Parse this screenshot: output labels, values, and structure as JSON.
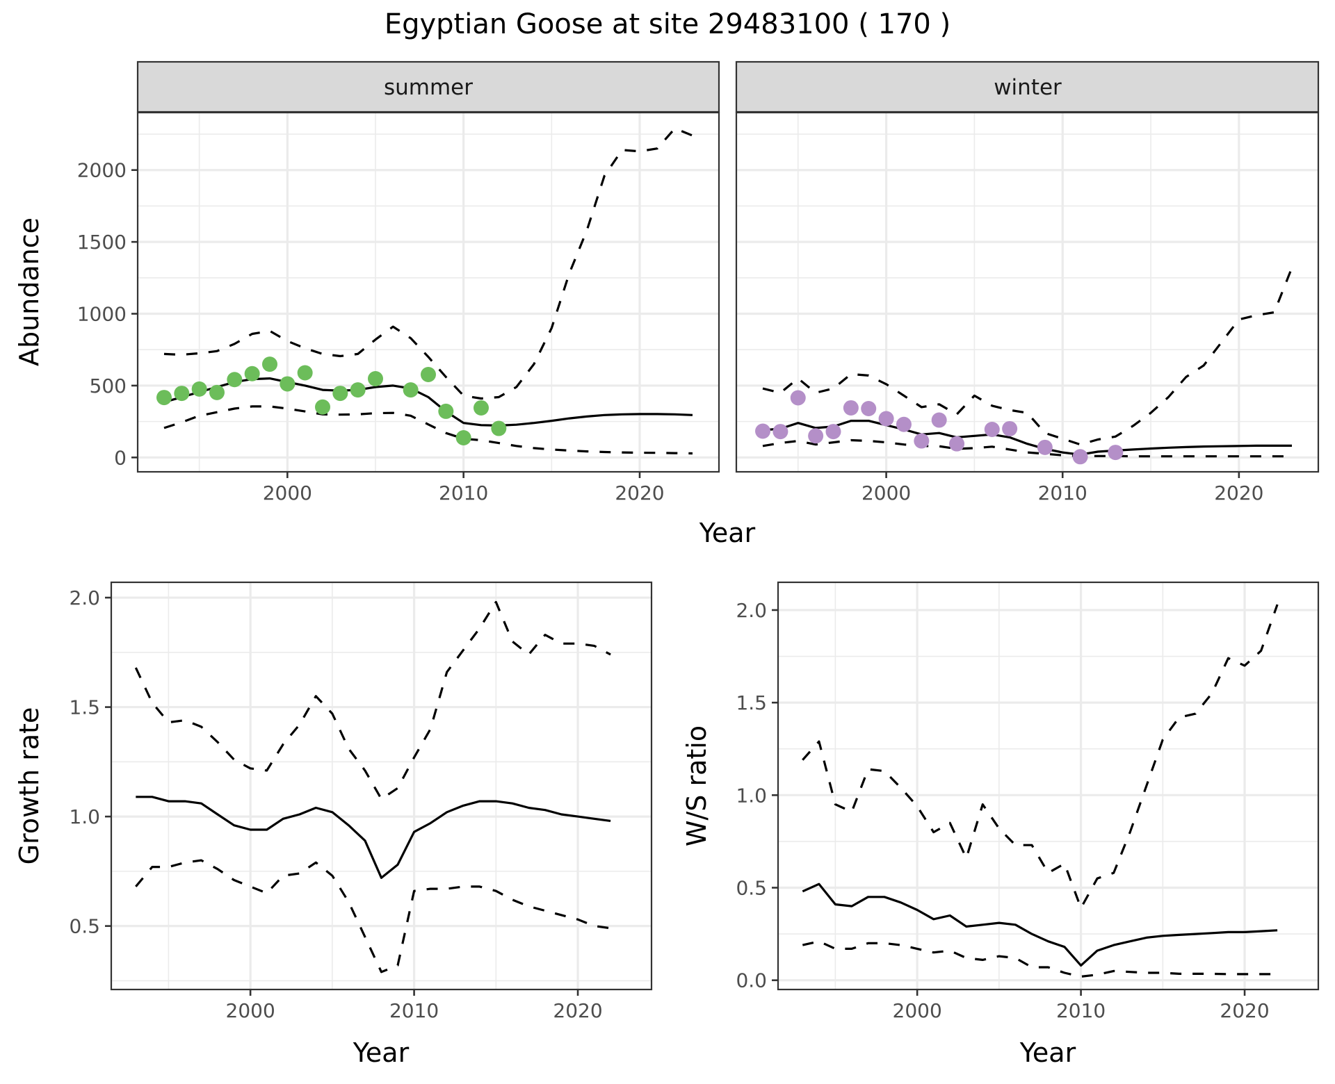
{
  "title": "Egyptian Goose at site 29483100 ( 170 )",
  "colors": {
    "summer_points": "#6cbd5a",
    "winter_points": "#b48fc8",
    "line": "#000000",
    "strip_fill": "#d9d9d9"
  },
  "chart_data": [
    {
      "id": "summer",
      "type": "line",
      "strip": "summer",
      "xlabel": "Year",
      "ylabel": "Abundance",
      "xlim": [
        1991.5,
        2024.5
      ],
      "ylim": [
        -100,
        2400
      ],
      "xticks": [
        2000,
        2010,
        2020
      ],
      "xtick_labels": [
        "2000",
        "2010",
        "2020"
      ],
      "yticks": [
        0,
        500,
        1000,
        1500,
        2000
      ],
      "ytick_labels": [
        "0",
        "500",
        "1000",
        "1500",
        "2000"
      ],
      "x": [
        1993,
        1994,
        1995,
        1996,
        1997,
        1998,
        1999,
        2000,
        2001,
        2002,
        2003,
        2004,
        2005,
        2006,
        2007,
        2008,
        2009,
        2010,
        2011,
        2012,
        2013,
        2014,
        2015,
        2016,
        2017,
        2018,
        2019,
        2020,
        2021,
        2022,
        2023
      ],
      "series": [
        {
          "name": "mean",
          "style": "solid",
          "values": [
            385,
            420,
            455,
            490,
            525,
            545,
            550,
            525,
            500,
            470,
            465,
            470,
            490,
            500,
            480,
            420,
            320,
            240,
            225,
            222,
            228,
            240,
            255,
            272,
            285,
            295,
            300,
            302,
            302,
            300,
            295
          ]
        },
        {
          "name": "upper",
          "style": "dashed",
          "values": [
            720,
            715,
            725,
            740,
            790,
            860,
            880,
            810,
            760,
            720,
            705,
            720,
            820,
            910,
            830,
            700,
            560,
            430,
            410,
            420,
            490,
            650,
            900,
            1280,
            1580,
            1960,
            2140,
            2130,
            2150,
            2290,
            2240
          ]
        },
        {
          "name": "lower",
          "style": "dashed",
          "values": [
            205,
            245,
            290,
            315,
            340,
            355,
            355,
            340,
            320,
            300,
            298,
            300,
            308,
            310,
            290,
            230,
            170,
            130,
            120,
            100,
            80,
            65,
            55,
            48,
            42,
            38,
            35,
            33,
            32,
            30,
            28
          ]
        }
      ],
      "points": {
        "x": [
          1993,
          1994,
          1995,
          1996,
          1997,
          1998,
          1999,
          2000,
          2001,
          2002,
          2003,
          2004,
          2005,
          2007,
          2008,
          2009,
          2010,
          2011,
          2012
        ],
        "y": [
          417,
          446,
          476,
          452,
          542,
          583,
          649,
          512,
          589,
          351,
          446,
          470,
          548,
          470,
          577,
          321,
          137,
          345,
          202
        ]
      }
    },
    {
      "id": "winter",
      "type": "line",
      "strip": "winter",
      "xlabel": "Year",
      "ylabel": "Abundance",
      "xlim": [
        1991.5,
        2024.5
      ],
      "ylim": [
        -100,
        2400
      ],
      "xticks": [
        2000,
        2010,
        2020
      ],
      "xtick_labels": [
        "2000",
        "2010",
        "2020"
      ],
      "yticks": [
        0,
        500,
        1000,
        1500,
        2000
      ],
      "x": [
        1993,
        1994,
        1995,
        1996,
        1997,
        1998,
        1999,
        2000,
        2001,
        2002,
        2003,
        2004,
        2005,
        2006,
        2007,
        2008,
        2009,
        2010,
        2011,
        2012,
        2013,
        2014,
        2015,
        2016,
        2017,
        2018,
        2019,
        2020,
        2021,
        2022,
        2023
      ],
      "series": [
        {
          "name": "mean",
          "style": "solid",
          "values": [
            190,
            200,
            240,
            205,
            215,
            255,
            255,
            225,
            195,
            160,
            170,
            140,
            150,
            160,
            140,
            95,
            60,
            35,
            20,
            40,
            48,
            55,
            62,
            68,
            72,
            76,
            78,
            80,
            82,
            82,
            82
          ]
        },
        {
          "name": "upper",
          "style": "dashed",
          "values": [
            480,
            450,
            550,
            450,
            480,
            580,
            570,
            510,
            430,
            350,
            370,
            300,
            430,
            360,
            330,
            310,
            170,
            130,
            90,
            125,
            145,
            220,
            310,
            420,
            560,
            640,
            800,
            960,
            990,
            1010,
            1320
          ]
        },
        {
          "name": "lower",
          "style": "dashed",
          "values": [
            80,
            100,
            115,
            90,
            105,
            120,
            115,
            105,
            90,
            80,
            78,
            60,
            65,
            75,
            55,
            35,
            25,
            15,
            8,
            10,
            10,
            8,
            8,
            8,
            8,
            8,
            8,
            8,
            8,
            8,
            8
          ]
        }
      ],
      "points": {
        "x": [
          1993,
          1994,
          1995,
          1996,
          1997,
          1998,
          1999,
          2000,
          2001,
          2002,
          2003,
          2004,
          2006,
          2007,
          2009,
          2011,
          2013
        ],
        "y": [
          183,
          180,
          415,
          150,
          180,
          345,
          340,
          270,
          230,
          115,
          260,
          95,
          195,
          200,
          70,
          5,
          35
        ]
      }
    },
    {
      "id": "growth",
      "type": "line",
      "xlabel": "Year",
      "ylabel": "Growth rate",
      "xlim": [
        1991.5,
        2024.5
      ],
      "ylim": [
        0.21,
        2.07
      ],
      "xticks": [
        2000,
        2010,
        2020
      ],
      "xtick_labels": [
        "2000",
        "2010",
        "2020"
      ],
      "yticks": [
        0.5,
        1.0,
        1.5,
        2.0
      ],
      "ytick_labels": [
        "0.5",
        "1.0",
        "1.5",
        "2.0"
      ],
      "x": [
        1993,
        1994,
        1995,
        1996,
        1997,
        1998,
        1999,
        2000,
        2001,
        2002,
        2003,
        2004,
        2005,
        2006,
        2007,
        2008,
        2009,
        2010,
        2011,
        2012,
        2013,
        2014,
        2015,
        2016,
        2017,
        2018,
        2019,
        2020,
        2021,
        2022
      ],
      "series": [
        {
          "name": "mean",
          "style": "solid",
          "values": [
            1.09,
            1.09,
            1.07,
            1.07,
            1.06,
            1.01,
            0.96,
            0.94,
            0.94,
            0.99,
            1.01,
            1.04,
            1.02,
            0.96,
            0.89,
            0.72,
            0.78,
            0.93,
            0.97,
            1.02,
            1.05,
            1.07,
            1.07,
            1.06,
            1.04,
            1.03,
            1.01,
            1.0,
            0.99,
            0.98
          ]
        },
        {
          "name": "upper",
          "style": "dashed",
          "values": [
            1.68,
            1.52,
            1.43,
            1.44,
            1.41,
            1.34,
            1.26,
            1.22,
            1.21,
            1.33,
            1.42,
            1.55,
            1.47,
            1.31,
            1.21,
            1.08,
            1.13,
            1.27,
            1.4,
            1.66,
            1.76,
            1.86,
            1.98,
            1.8,
            1.74,
            1.83,
            1.79,
            1.79,
            1.78,
            1.74
          ]
        },
        {
          "name": "lower",
          "style": "dashed",
          "values": [
            0.68,
            0.77,
            0.77,
            0.79,
            0.8,
            0.76,
            0.71,
            0.68,
            0.65,
            0.73,
            0.74,
            0.79,
            0.73,
            0.61,
            0.45,
            0.29,
            0.32,
            0.66,
            0.67,
            0.67,
            0.68,
            0.68,
            0.66,
            0.62,
            0.59,
            0.57,
            0.55,
            0.53,
            0.5,
            0.49
          ]
        }
      ]
    },
    {
      "id": "ws_ratio",
      "type": "line",
      "xlabel": "Year",
      "ylabel": "W/S ratio",
      "xlim": [
        1991.5,
        2024.5
      ],
      "ylim": [
        -0.05,
        2.15
      ],
      "xticks": [
        2000,
        2010,
        2020
      ],
      "xtick_labels": [
        "2000",
        "2010",
        "2020"
      ],
      "yticks": [
        0.0,
        0.5,
        1.0,
        1.5,
        2.0
      ],
      "ytick_labels": [
        "0.0",
        "0.5",
        "1.0",
        "1.5",
        "2.0"
      ],
      "x": [
        1993,
        1994,
        1995,
        1996,
        1997,
        1998,
        1999,
        2000,
        2001,
        2002,
        2003,
        2004,
        2005,
        2006,
        2007,
        2008,
        2009,
        2010,
        2011,
        2012,
        2013,
        2014,
        2015,
        2016,
        2017,
        2018,
        2019,
        2020,
        2021,
        2022
      ],
      "series": [
        {
          "name": "mean",
          "style": "solid",
          "values": [
            0.48,
            0.52,
            0.41,
            0.4,
            0.45,
            0.45,
            0.42,
            0.38,
            0.33,
            0.35,
            0.29,
            0.3,
            0.31,
            0.3,
            0.25,
            0.21,
            0.18,
            0.08,
            0.16,
            0.19,
            0.21,
            0.23,
            0.24,
            0.245,
            0.25,
            0.255,
            0.26,
            0.26,
            0.265,
            0.27
          ]
        },
        {
          "name": "upper",
          "style": "dashed",
          "values": [
            1.19,
            1.29,
            0.95,
            0.91,
            1.14,
            1.13,
            1.04,
            0.94,
            0.8,
            0.85,
            0.66,
            0.95,
            0.82,
            0.73,
            0.73,
            0.58,
            0.63,
            0.39,
            0.55,
            0.58,
            0.8,
            1.05,
            1.3,
            1.42,
            1.44,
            1.55,
            1.74,
            1.7,
            1.78,
            2.03
          ]
        },
        {
          "name": "lower",
          "style": "dashed",
          "values": [
            0.19,
            0.21,
            0.17,
            0.17,
            0.2,
            0.2,
            0.19,
            0.17,
            0.15,
            0.16,
            0.12,
            0.11,
            0.13,
            0.12,
            0.07,
            0.07,
            0.04,
            0.02,
            0.03,
            0.05,
            0.045,
            0.04,
            0.04,
            0.035,
            0.035,
            0.035,
            0.033,
            0.033,
            0.033,
            0.033
          ]
        }
      ]
    }
  ]
}
